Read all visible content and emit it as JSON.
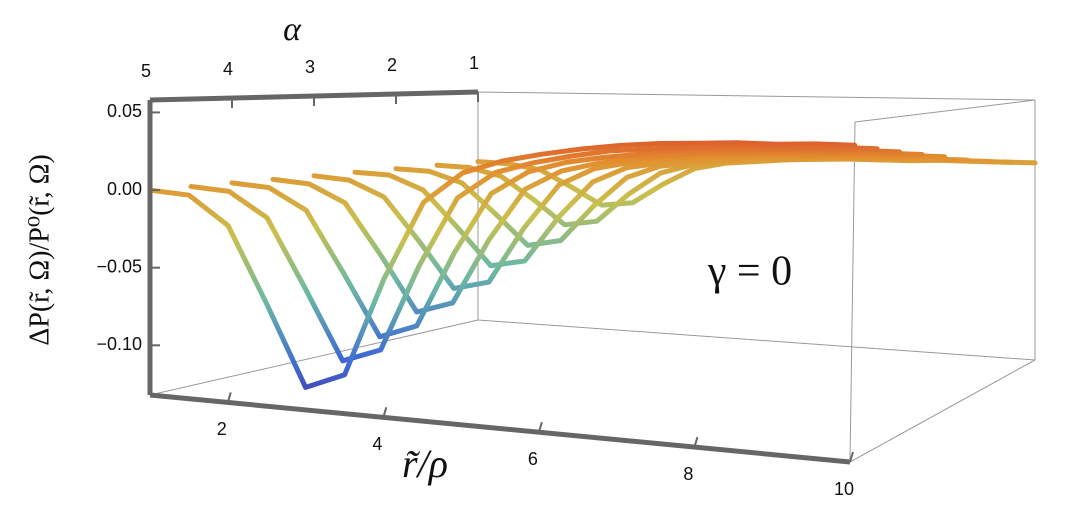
{
  "chart_data": {
    "type": "line3d",
    "x_label": "r̃/ρ",
    "y_label": "α",
    "z_label": "ΔP(r̃, Ω)/P⁰(r̃, Ω)",
    "annotation": "γ = 0",
    "xlim": [
      1,
      10
    ],
    "ylim": [
      5,
      1
    ],
    "zlim": [
      -0.132,
      0.058
    ],
    "xticks": [
      2,
      4,
      6,
      8,
      10
    ],
    "yticks": [
      5,
      4,
      3,
      2,
      1
    ],
    "zticks": [
      0.05,
      {
        "value": 0,
        "label": "0.00"
      },
      {
        "value": -0.05,
        "label": "−0.05"
      },
      {
        "value": -0.1,
        "label": "−0.10"
      }
    ],
    "colormap": [
      "#4a1d8e",
      "#3f6bd3",
      "#6cb8a4",
      "#c9c04e",
      "#e3902f",
      "#d7352a"
    ],
    "x": [
      1,
      1.5,
      2,
      2.5,
      3,
      3.5,
      4,
      4.5,
      5,
      5.5,
      6,
      6.5,
      7,
      7.5,
      8,
      8.5,
      9,
      9.5,
      10
    ],
    "series": [
      {
        "alpha": 1,
        "values": [
          0,
          -0.001,
          -0.005,
          -0.018,
          -0.032,
          -0.029,
          -0.013,
          0,
          0.005,
          0.007,
          0.009,
          0.01,
          0.011,
          0.011,
          0.011,
          0.012,
          0.012,
          0.012,
          0.012
        ]
      },
      {
        "alpha": 1.5,
        "values": [
          0,
          -0.001,
          -0.007,
          -0.024,
          -0.043,
          -0.039,
          -0.017,
          0,
          0.007,
          0.01,
          0.012,
          0.013,
          0.015,
          0.015,
          0.015,
          0.016,
          0.016,
          0.016,
          0.016
        ]
      },
      {
        "alpha": 2,
        "values": [
          0,
          -0.001,
          -0.009,
          -0.031,
          -0.054,
          -0.049,
          -0.022,
          0,
          0.009,
          0.012,
          0.015,
          0.017,
          0.018,
          0.019,
          0.019,
          0.02,
          0.02,
          0.02,
          0.02
        ]
      },
      {
        "alpha": 2.5,
        "values": [
          0,
          -0.001,
          -0.011,
          -0.037,
          -0.064,
          -0.059,
          -0.026,
          0,
          0.011,
          0.015,
          0.018,
          0.02,
          0.022,
          0.023,
          0.023,
          0.024,
          0.024,
          0.024,
          0.024
        ]
      },
      {
        "alpha": 3,
        "values": [
          0,
          -0.002,
          -0.013,
          -0.043,
          -0.075,
          -0.069,
          -0.03,
          0.001,
          0.013,
          0.018,
          0.021,
          0.024,
          0.026,
          0.027,
          0.027,
          0.028,
          0.028,
          0.029,
          0.029
        ]
      },
      {
        "alpha": 3.5,
        "values": [
          0,
          -0.002,
          -0.014,
          -0.049,
          -0.086,
          -0.078,
          -0.034,
          0.001,
          0.014,
          0.02,
          0.024,
          0.027,
          0.029,
          0.03,
          0.031,
          0.032,
          0.032,
          0.033,
          0.033
        ]
      },
      {
        "alpha": 4,
        "values": [
          0,
          -0.002,
          -0.016,
          -0.056,
          -0.097,
          -0.088,
          -0.039,
          0.001,
          0.016,
          0.023,
          0.027,
          0.03,
          0.033,
          0.034,
          0.035,
          0.036,
          0.036,
          0.037,
          0.037
        ]
      },
      {
        "alpha": 4.5,
        "values": [
          0,
          -0.002,
          -0.018,
          -0.062,
          -0.107,
          -0.098,
          -0.043,
          0.001,
          0.018,
          0.025,
          0.03,
          0.034,
          0.036,
          0.038,
          0.039,
          0.04,
          0.04,
          0.041,
          0.041
        ]
      },
      {
        "alpha": 5,
        "values": [
          0,
          -0.002,
          -0.02,
          -0.068,
          -0.118,
          -0.108,
          -0.047,
          0.001,
          0.02,
          0.028,
          0.033,
          0.037,
          0.04,
          0.042,
          0.043,
          0.044,
          0.044,
          0.045,
          0.045
        ]
      }
    ]
  }
}
